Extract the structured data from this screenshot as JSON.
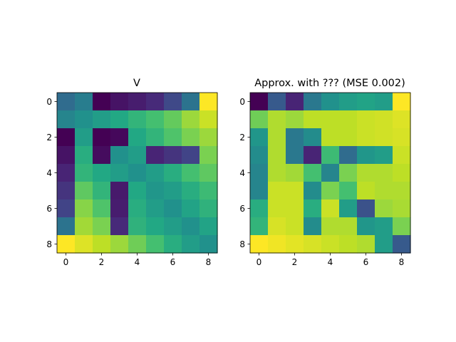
{
  "chart_data": [
    {
      "type": "heatmap",
      "title": "V",
      "colormap": "viridis",
      "x_ticks": [
        "0",
        "2",
        "4",
        "6",
        "8"
      ],
      "y_ticks": [
        "0",
        "2",
        "4",
        "6",
        "8"
      ],
      "values": [
        [
          0.35,
          0.42,
          0.0,
          0.05,
          0.08,
          0.12,
          0.22,
          0.38,
          1.0
        ],
        [
          0.45,
          0.5,
          0.55,
          0.6,
          0.65,
          0.7,
          0.76,
          0.85,
          0.92
        ],
        [
          0.0,
          0.55,
          0.0,
          0.02,
          0.6,
          0.65,
          0.72,
          0.8,
          0.85
        ],
        [
          0.05,
          0.62,
          0.03,
          0.5,
          0.55,
          0.1,
          0.15,
          0.2,
          0.8
        ],
        [
          0.1,
          0.65,
          0.6,
          0.55,
          0.5,
          0.55,
          0.62,
          0.7,
          0.75
        ],
        [
          0.15,
          0.75,
          0.65,
          0.07,
          0.6,
          0.52,
          0.55,
          0.62,
          0.68
        ],
        [
          0.2,
          0.82,
          0.72,
          0.08,
          0.62,
          0.55,
          0.5,
          0.58,
          0.64
        ],
        [
          0.38,
          0.86,
          0.8,
          0.12,
          0.64,
          0.6,
          0.55,
          0.5,
          0.58
        ],
        [
          1.0,
          0.95,
          0.9,
          0.85,
          0.78,
          0.7,
          0.62,
          0.55,
          0.5
        ]
      ]
    },
    {
      "type": "heatmap",
      "title": "Approx. with ??? (MSE 0.002)",
      "colormap": "viridis",
      "x_ticks": [
        "0",
        "2",
        "4",
        "6",
        "8"
      ],
      "y_ticks": [
        "0",
        "2",
        "4",
        "6",
        "8"
      ],
      "values": [
        [
          0.0,
          0.28,
          0.1,
          0.4,
          0.5,
          0.55,
          0.58,
          0.55,
          1.0
        ],
        [
          0.78,
          0.88,
          0.85,
          0.9,
          0.9,
          0.9,
          0.92,
          0.93,
          0.95
        ],
        [
          0.52,
          0.88,
          0.4,
          0.48,
          0.9,
          0.9,
          0.92,
          0.93,
          0.94
        ],
        [
          0.48,
          0.88,
          0.4,
          0.1,
          0.68,
          0.35,
          0.52,
          0.55,
          0.92
        ],
        [
          0.45,
          0.88,
          0.86,
          0.7,
          0.45,
          0.8,
          0.88,
          0.88,
          0.9
        ],
        [
          0.45,
          0.92,
          0.92,
          0.48,
          0.8,
          0.7,
          0.9,
          0.88,
          0.88
        ],
        [
          0.62,
          0.92,
          0.92,
          0.62,
          0.92,
          0.55,
          0.25,
          0.85,
          0.87
        ],
        [
          0.65,
          0.94,
          0.92,
          0.48,
          0.88,
          0.88,
          0.52,
          0.55,
          0.8
        ],
        [
          1.0,
          0.98,
          0.96,
          0.94,
          0.92,
          0.9,
          0.88,
          0.55,
          0.28
        ]
      ]
    }
  ]
}
